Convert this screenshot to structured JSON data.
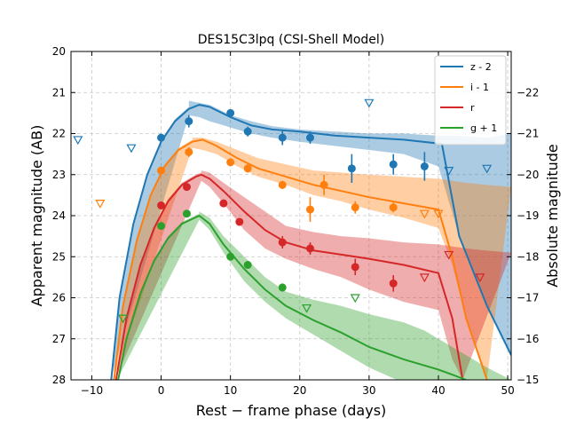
{
  "chart_data": {
    "type": "line",
    "title": "DES15C3lpq (CSI-Shell Model)",
    "xlabel": "Rest − frame phase (days)",
    "ylabel": "Apparent magnitude (AB)",
    "y2label": "Absolute magnitude",
    "xlim": [
      -13,
      50.5
    ],
    "ylim": [
      28,
      20
    ],
    "y2lim": [
      -15,
      -23
    ],
    "y2_offset": -43.0,
    "xticks": [
      "−10",
      "0",
      "10",
      "20",
      "30",
      "40",
      "50"
    ],
    "xtick_values": [
      -10,
      0,
      10,
      20,
      30,
      40,
      50
    ],
    "yticks": [
      "20",
      "21",
      "22",
      "23",
      "24",
      "25",
      "26",
      "27",
      "28"
    ],
    "ytick_values": [
      20,
      21,
      22,
      23,
      24,
      25,
      26,
      27,
      28
    ],
    "y2ticks": [
      "−22",
      "−21",
      "−20",
      "−19",
      "−18",
      "−17",
      "−16",
      "−15"
    ],
    "y2tick_values": [
      -22,
      -21,
      -20,
      -19,
      -18,
      -17,
      -16,
      -15
    ],
    "grid": true,
    "legend_position": "top-right",
    "series": [
      {
        "name": "z - 2",
        "color": "#1f77b4",
        "model": [
          [
            -7.2,
            28
          ],
          [
            -6,
            26
          ],
          [
            -4,
            24.2
          ],
          [
            -2,
            23
          ],
          [
            0,
            22.2
          ],
          [
            2,
            21.7
          ],
          [
            4,
            21.4
          ],
          [
            5.5,
            21.3
          ],
          [
            7,
            21.35
          ],
          [
            10,
            21.6
          ],
          [
            13,
            21.8
          ],
          [
            16,
            21.9
          ],
          [
            20,
            21.95
          ],
          [
            25,
            22.05
          ],
          [
            30,
            22.1
          ],
          [
            35,
            22.15
          ],
          [
            40.5,
            22.25
          ],
          [
            43,
            24.5
          ],
          [
            47,
            26.2
          ],
          [
            50.5,
            27.4
          ]
        ],
        "band_upper": [
          [
            4,
            21.2
          ],
          [
            5.5,
            21.25
          ],
          [
            7,
            21.3
          ],
          [
            10,
            21.55
          ],
          [
            13,
            21.7
          ],
          [
            16,
            21.82
          ],
          [
            20,
            21.9
          ],
          [
            25,
            21.95
          ],
          [
            30,
            22.0
          ],
          [
            35,
            22.0
          ],
          [
            40,
            22.05
          ],
          [
            43,
            22.05
          ],
          [
            47,
            22.1
          ],
          [
            50.5,
            22.0
          ]
        ],
        "band_lower": [
          [
            4,
            21.55
          ],
          [
            5.5,
            21.6
          ],
          [
            7,
            21.7
          ],
          [
            10,
            21.85
          ],
          [
            13,
            22.0
          ],
          [
            16,
            22.1
          ],
          [
            20,
            22.2
          ],
          [
            25,
            22.3
          ],
          [
            30,
            22.4
          ],
          [
            35,
            22.5
          ],
          [
            40,
            22.8
          ],
          [
            43,
            24.5
          ],
          [
            47,
            26.2
          ],
          [
            50.5,
            27.4
          ]
        ],
        "points": [
          [
            0,
            22.1,
            0.1
          ],
          [
            4,
            21.7,
            0.15
          ],
          [
            10,
            21.5,
            0.05
          ],
          [
            12.5,
            21.95,
            0.12
          ],
          [
            17.5,
            22.1,
            0.18
          ],
          [
            21.5,
            22.1,
            0.15
          ],
          [
            27.5,
            22.85,
            0.35
          ],
          [
            33.5,
            22.75,
            0.25
          ],
          [
            38,
            22.8,
            0.35
          ]
        ],
        "upper_limits": [
          [
            -12,
            22.15
          ],
          [
            -4.3,
            22.35
          ],
          [
            30,
            21.25
          ],
          [
            41.5,
            22.9
          ],
          [
            47,
            22.85
          ]
        ]
      },
      {
        "name": "i - 1",
        "color": "#ff7f0e",
        "model": [
          [
            -6.8,
            28
          ],
          [
            -5.5,
            26.2
          ],
          [
            -3.5,
            24.6
          ],
          [
            -1.5,
            23.5
          ],
          [
            0.5,
            22.8
          ],
          [
            2.5,
            22.4
          ],
          [
            4.5,
            22.2
          ],
          [
            6,
            22.15
          ],
          [
            8,
            22.3
          ],
          [
            11,
            22.6
          ],
          [
            14,
            22.85
          ],
          [
            18,
            23.05
          ],
          [
            22,
            23.25
          ],
          [
            26,
            23.4
          ],
          [
            30,
            23.55
          ],
          [
            35,
            23.7
          ],
          [
            40,
            23.85
          ],
          [
            42,
            25.0
          ],
          [
            44,
            26.5
          ],
          [
            47,
            28
          ]
        ],
        "band_upper": [
          [
            4.5,
            22.1
          ],
          [
            6,
            22.1
          ],
          [
            8,
            22.2
          ],
          [
            11,
            22.4
          ],
          [
            14,
            22.6
          ],
          [
            18,
            22.75
          ],
          [
            22,
            22.9
          ],
          [
            26,
            22.95
          ],
          [
            30,
            23.0
          ],
          [
            35,
            23.05
          ],
          [
            40,
            23.1
          ],
          [
            44,
            23.2
          ],
          [
            47,
            23.25
          ],
          [
            50.5,
            23.3
          ]
        ],
        "band_lower": [
          [
            4.5,
            22.35
          ],
          [
            6,
            22.4
          ],
          [
            8,
            22.5
          ],
          [
            11,
            22.8
          ],
          [
            14,
            23.05
          ],
          [
            18,
            23.25
          ],
          [
            22,
            23.5
          ],
          [
            26,
            23.65
          ],
          [
            30,
            23.85
          ],
          [
            35,
            24.05
          ],
          [
            40,
            24.3
          ],
          [
            42,
            25.2
          ],
          [
            44,
            26.5
          ],
          [
            47,
            28
          ]
        ],
        "points": [
          [
            0,
            22.9,
            0.08
          ],
          [
            4,
            22.45,
            0.12
          ],
          [
            10,
            22.7,
            0.08
          ],
          [
            12.5,
            22.85,
            0.1
          ],
          [
            17.5,
            23.25,
            0.1
          ],
          [
            21.5,
            23.85,
            0.3
          ],
          [
            23.5,
            23.25,
            0.25
          ],
          [
            28,
            23.8,
            0.15
          ],
          [
            33.5,
            23.8,
            0.12
          ]
        ],
        "upper_limits": [
          [
            -8.8,
            23.7
          ],
          [
            38,
            23.95
          ],
          [
            40,
            23.95
          ]
        ]
      },
      {
        "name": "r",
        "color": "#d62728",
        "model": [
          [
            -6.5,
            28
          ],
          [
            -5,
            26.5
          ],
          [
            -3,
            25.2
          ],
          [
            -1,
            24.3
          ],
          [
            1,
            23.65
          ],
          [
            3,
            23.25
          ],
          [
            5,
            23.05
          ],
          [
            5.8,
            23.0
          ],
          [
            7,
            23.1
          ],
          [
            9,
            23.4
          ],
          [
            12,
            23.9
          ],
          [
            15,
            24.35
          ],
          [
            18,
            24.65
          ],
          [
            22,
            24.85
          ],
          [
            26,
            24.95
          ],
          [
            30,
            25.05
          ],
          [
            35,
            25.2
          ],
          [
            40,
            25.4
          ],
          [
            42,
            26.5
          ],
          [
            43.5,
            28
          ]
        ],
        "band_upper": [
          [
            5.8,
            22.9
          ],
          [
            7,
            22.95
          ],
          [
            9,
            23.2
          ],
          [
            12,
            23.55
          ],
          [
            15,
            23.9
          ],
          [
            18,
            24.25
          ],
          [
            22,
            24.4
          ],
          [
            26,
            24.5
          ],
          [
            30,
            24.55
          ],
          [
            35,
            24.65
          ],
          [
            40,
            24.7
          ],
          [
            44,
            24.8
          ],
          [
            47,
            24.85
          ],
          [
            50.5,
            24.9
          ]
        ],
        "band_lower": [
          [
            5.8,
            23.15
          ],
          [
            7,
            23.3
          ],
          [
            9,
            23.7
          ],
          [
            12,
            24.35
          ],
          [
            15,
            24.8
          ],
          [
            18,
            25.05
          ],
          [
            22,
            25.3
          ],
          [
            26,
            25.5
          ],
          [
            30,
            25.8
          ],
          [
            35,
            26.1
          ],
          [
            40,
            26.3
          ],
          [
            42,
            27.5
          ],
          [
            43.5,
            28
          ]
        ],
        "points": [
          [
            0,
            23.75,
            0.07
          ],
          [
            3.7,
            23.3,
            0.08
          ],
          [
            9,
            23.7,
            0.08
          ],
          [
            11.3,
            24.15,
            0.08
          ],
          [
            17.5,
            24.65,
            0.15
          ],
          [
            21.5,
            24.8,
            0.15
          ],
          [
            28,
            25.25,
            0.2
          ],
          [
            33.5,
            25.65,
            0.2
          ]
        ],
        "upper_limits": [
          [
            38,
            25.5
          ],
          [
            41.5,
            24.95
          ],
          [
            46,
            25.5
          ]
        ]
      },
      {
        "name": "g + 1",
        "color": "#2ca02c",
        "model": [
          [
            -6.2,
            28
          ],
          [
            -5,
            27
          ],
          [
            -3,
            25.9
          ],
          [
            -1,
            25.1
          ],
          [
            1,
            24.55
          ],
          [
            3,
            24.2
          ],
          [
            5.5,
            24.0
          ],
          [
            7,
            24.2
          ],
          [
            9,
            24.7
          ],
          [
            12,
            25.3
          ],
          [
            15,
            25.8
          ],
          [
            18,
            26.2
          ],
          [
            22,
            26.55
          ],
          [
            26,
            26.85
          ],
          [
            30,
            27.2
          ],
          [
            35,
            27.5
          ],
          [
            40,
            27.75
          ],
          [
            44,
            28.0
          ]
        ],
        "band_upper": [
          [
            5.5,
            23.9
          ],
          [
            7,
            24.05
          ],
          [
            9,
            24.5
          ],
          [
            12,
            25.0
          ],
          [
            15,
            25.5
          ],
          [
            18,
            25.85
          ],
          [
            22,
            26.05
          ],
          [
            26,
            26.2
          ],
          [
            30,
            26.4
          ],
          [
            35,
            26.6
          ],
          [
            38,
            26.8
          ],
          [
            40,
            27.0
          ],
          [
            42,
            27.2
          ],
          [
            44,
            27.4
          ],
          [
            47,
            27.7
          ],
          [
            50.5,
            28
          ]
        ],
        "band_lower": [
          [
            5.5,
            24.1
          ],
          [
            7,
            24.35
          ],
          [
            9,
            24.9
          ],
          [
            12,
            25.6
          ],
          [
            15,
            26.1
          ],
          [
            18,
            26.5
          ],
          [
            22,
            26.9
          ],
          [
            26,
            27.3
          ],
          [
            30,
            27.7
          ],
          [
            34,
            28
          ]
        ],
        "points": [
          [
            0,
            24.25,
            0.06
          ],
          [
            3.7,
            23.95,
            0.07
          ],
          [
            10,
            25.0,
            0.08
          ],
          [
            12.5,
            25.2,
            0.07
          ],
          [
            17.5,
            25.75,
            0.1
          ]
        ],
        "upper_limits": [
          [
            -5.5,
            26.5
          ],
          [
            21,
            26.25
          ],
          [
            28,
            26.0
          ]
        ]
      }
    ]
  }
}
